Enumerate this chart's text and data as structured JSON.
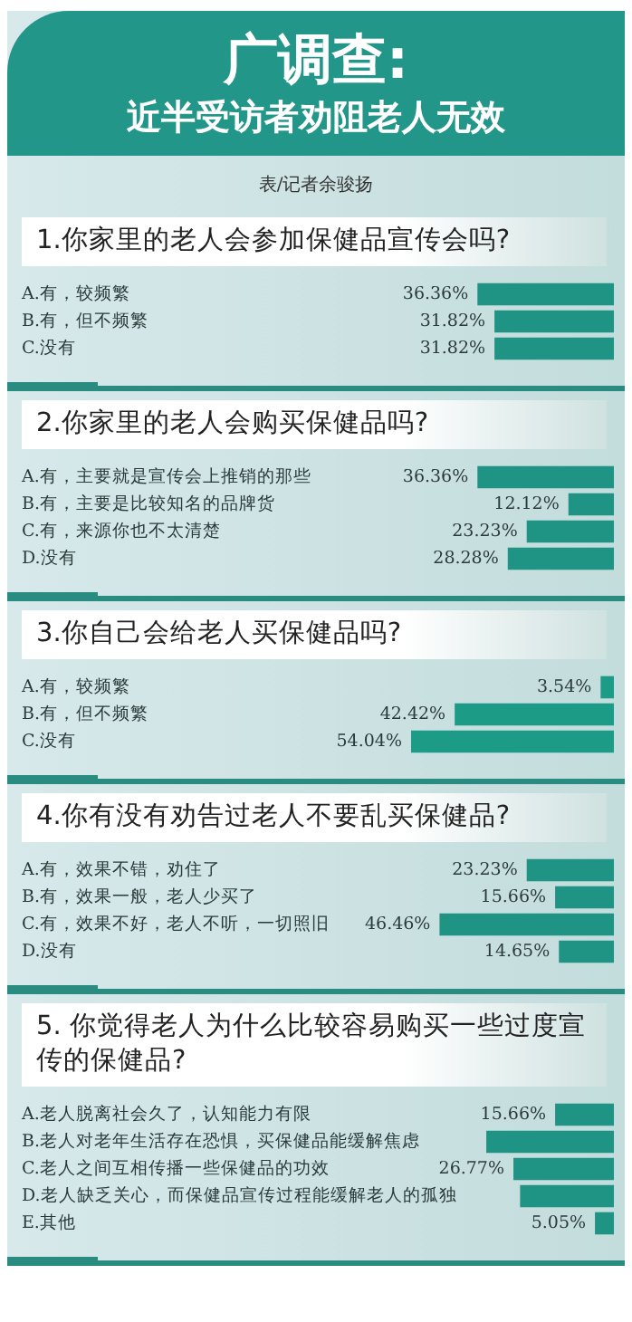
{
  "chart_data": [
    {
      "type": "other",
      "title": "广调查:",
      "subtitle": "近半受访者劝阻老人无效",
      "annotations": [
        "表/记者余骏扬"
      ]
    },
    {
      "type": "bar",
      "orientation": "horizontal",
      "title": "1.你家里的老人会参加保健品宣传会吗?",
      "categories": [
        "A.有，较频繁",
        "B.有，但不频繁",
        "C.没有"
      ],
      "values": [
        36.36,
        31.82,
        31.82
      ],
      "value_labels": [
        "36.36%",
        "31.82%",
        "31.82%"
      ],
      "color": "#1f9484"
    },
    {
      "type": "bar",
      "orientation": "horizontal",
      "title": "2.你家里的老人会购买保健品吗?",
      "categories": [
        "A.有，主要就是宣传会上推销的那些",
        "B.有，主要是比较知名的品牌货",
        "C.有，来源你也不太清楚",
        "D.没有"
      ],
      "values": [
        36.36,
        12.12,
        23.23,
        28.28
      ],
      "value_labels": [
        "36.36%",
        "12.12%",
        "23.23%",
        "28.28%"
      ],
      "color": "#1f9484"
    },
    {
      "type": "bar",
      "orientation": "horizontal",
      "title": "3.你自己会给老人买保健品吗?",
      "categories": [
        "A.有，较频繁",
        "B.有，但不频繁",
        "C.没有"
      ],
      "values": [
        3.54,
        42.42,
        54.04
      ],
      "value_labels": [
        "3.54%",
        "42.42%",
        "54.04%"
      ],
      "color": "#1c9c86"
    },
    {
      "type": "bar",
      "orientation": "horizontal",
      "title": "4.你有没有劝告过老人不要乱买保健品?",
      "categories": [
        "A.有，效果不错，劝住了",
        "B.有，效果一般，老人少买了",
        "C.有，效果不好，老人不听，一切照旧",
        "D.没有"
      ],
      "values": [
        23.23,
        15.66,
        46.46,
        14.65
      ],
      "value_labels": [
        "23.23%",
        "15.66%",
        "46.46%",
        "14.65%"
      ],
      "color": "#1f9484"
    },
    {
      "type": "bar",
      "orientation": "horizontal",
      "title": "5. 你觉得老人为什么比较容易购买一些过度宣传的保健品?",
      "categories": [
        "A.老人脱离社会久了，认知能力有限",
        "B.老人对老年生活存在恐惧，买保健品能缓解焦虑",
        "C.老人之间互相传播一些保健品的功效",
        "D.老人缺乏关心，而保健品宣传过程能缓解老人的孤独",
        "E.其他"
      ],
      "values": [
        15.66,
        34,
        26.77,
        25,
        5.05
      ],
      "value_labels": [
        "15.66%",
        null,
        "26.77%",
        null,
        "5.05%"
      ],
      "color": "#1f9484"
    }
  ]
}
